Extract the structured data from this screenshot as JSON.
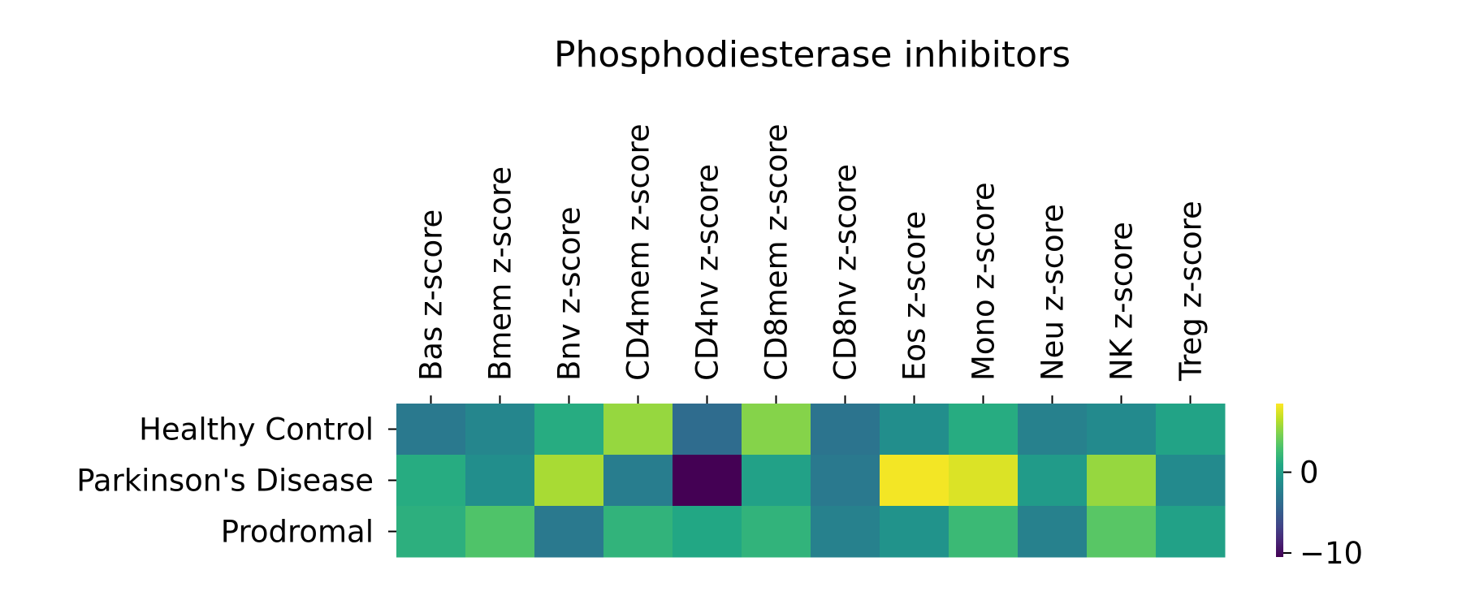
{
  "chart_data": {
    "type": "heatmap",
    "title": "Phosphodiesterase inhibitors",
    "xlabel": "",
    "ylabel": "",
    "x_categories": [
      "Bas z-score",
      "Bmem z-score",
      "Bnv z-score",
      "CD4mem z-score",
      "CD4nv z-score",
      "CD8mem z-score",
      "CD8nv z-score",
      "Eos z-score",
      "Mono z-score",
      "Neu z-score",
      "NK z-score",
      "Treg z-score"
    ],
    "y_categories": [
      "Healthy Control",
      "Parkinson's Disease",
      "Prodromal"
    ],
    "values": [
      [
        -2.8,
        -1.8,
        1.2,
        5.5,
        -3.8,
        5.0,
        -3.2,
        -1.2,
        1.2,
        -2.2,
        -1.5,
        0.5
      ],
      [
        1.2,
        -1.2,
        6.0,
        -2.5,
        -10.5,
        0.3,
        -2.8,
        8.2,
        7.5,
        -0.2,
        5.5,
        -1.5
      ],
      [
        1.5,
        3.2,
        -2.8,
        1.8,
        0.8,
        1.8,
        -2.2,
        -0.8,
        2.3,
        -2.2,
        3.5,
        0.3
      ]
    ],
    "colorbar": {
      "colormap": "viridis",
      "range": [
        -10.5,
        8.5
      ],
      "ticks": [
        0,
        -10
      ],
      "tick_labels": [
        "0",
        "−10"
      ]
    },
    "grid": false,
    "x_ticks_position": "top",
    "x_tick_rotation": 90
  }
}
